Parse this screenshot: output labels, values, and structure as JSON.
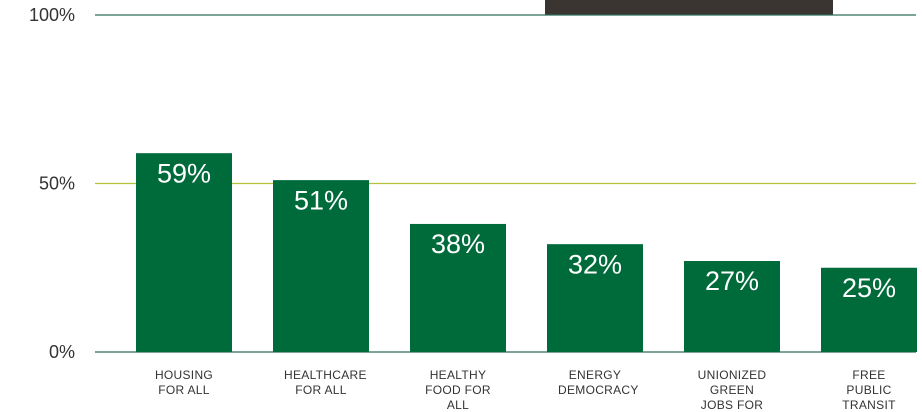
{
  "chart_data": {
    "type": "bar",
    "categories": [
      "HOUSING FOR ALL",
      "HEALTHCARE FOR ALL",
      "HEALTHY FOOD FOR ALL",
      "ENERGY DEMOCRACY",
      "UNIONIZED GREEN JOBS FOR ALL",
      "FREE PUBLIC TRANSIT"
    ],
    "values": [
      59,
      51,
      38,
      32,
      27,
      25
    ],
    "value_labels": [
      "59%",
      "51%",
      "38%",
      "32%",
      "27%",
      "25%"
    ],
    "color": "#006b3a",
    "ylim": [
      0,
      100
    ],
    "yticks": [
      {
        "value": 0,
        "label": "0%"
      },
      {
        "value": 50,
        "label": "50%"
      },
      {
        "value": 100,
        "label": "100%"
      }
    ],
    "grid": true,
    "grid_colors": [
      "#2f6e5c",
      "#b3c23a",
      "#2f6e5c"
    ]
  }
}
